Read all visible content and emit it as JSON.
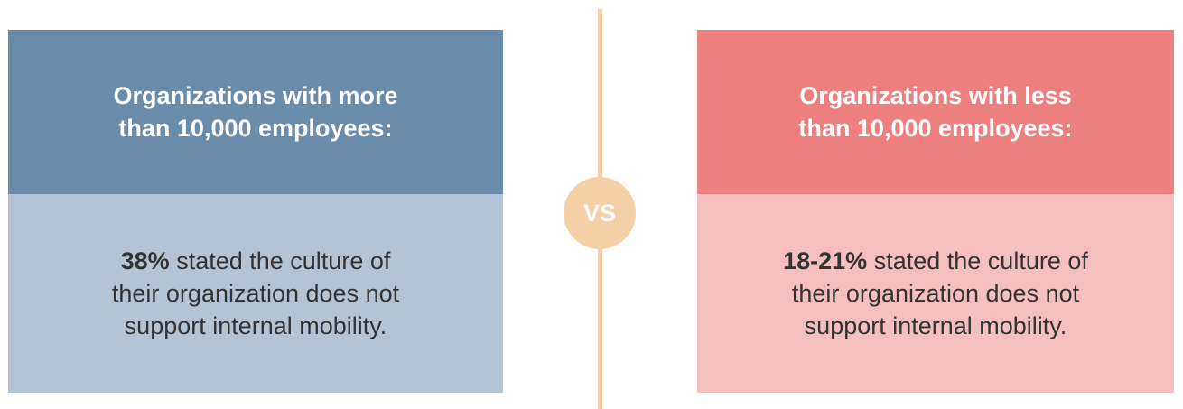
{
  "panels": [
    {
      "title_lines": [
        "Organizations with more",
        "than 10,000 employees:"
      ],
      "stat": "38%",
      "statement_lines": [
        "stated the culture of",
        "their organization does not",
        "support internal mobility."
      ]
    },
    {
      "title_lines": [
        "Organizations with less",
        "than 10,000 employees:"
      ],
      "stat": "18-21%",
      "statement_lines": [
        "stated the culture of",
        "their organization does not",
        "support internal mobility."
      ]
    }
  ],
  "separator": {
    "label": "VS"
  }
}
